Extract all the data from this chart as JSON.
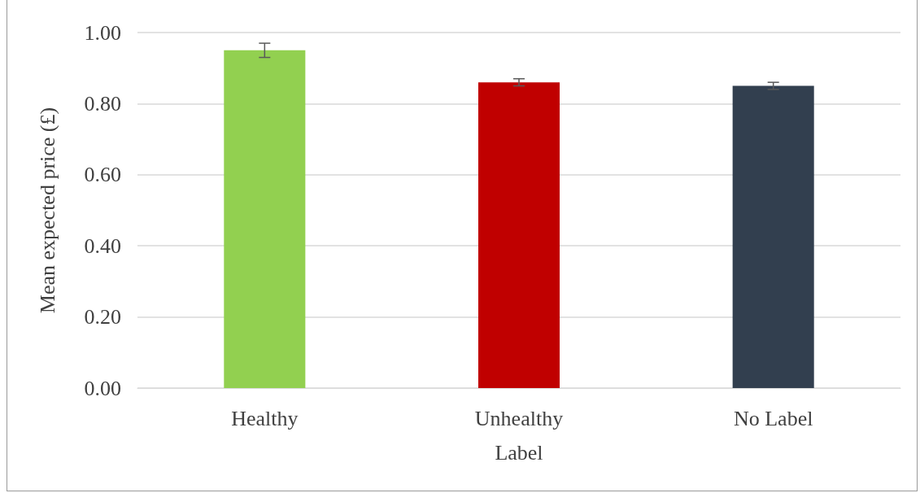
{
  "chart_data": {
    "type": "bar",
    "xlabel": "Label",
    "ylabel": "Mean expected price (£)",
    "categories": [
      "Healthy",
      "Unhealthy",
      "No Label"
    ],
    "values": [
      0.95,
      0.86,
      0.85
    ],
    "errors": [
      0.02,
      0.01,
      0.01
    ],
    "colors": [
      "#92d050",
      "#c00000",
      "#323f4f"
    ],
    "ylim": [
      0,
      1
    ],
    "yticks": [
      {
        "value": 0,
        "label": "0.00"
      },
      {
        "value": 0.2,
        "label": "0.20"
      },
      {
        "value": 0.4,
        "label": "0.40"
      },
      {
        "value": 0.6,
        "label": "0.60"
      },
      {
        "value": 0.8,
        "label": "0.80"
      },
      {
        "value": 1,
        "label": "1.00"
      }
    ],
    "grid": "y"
  }
}
